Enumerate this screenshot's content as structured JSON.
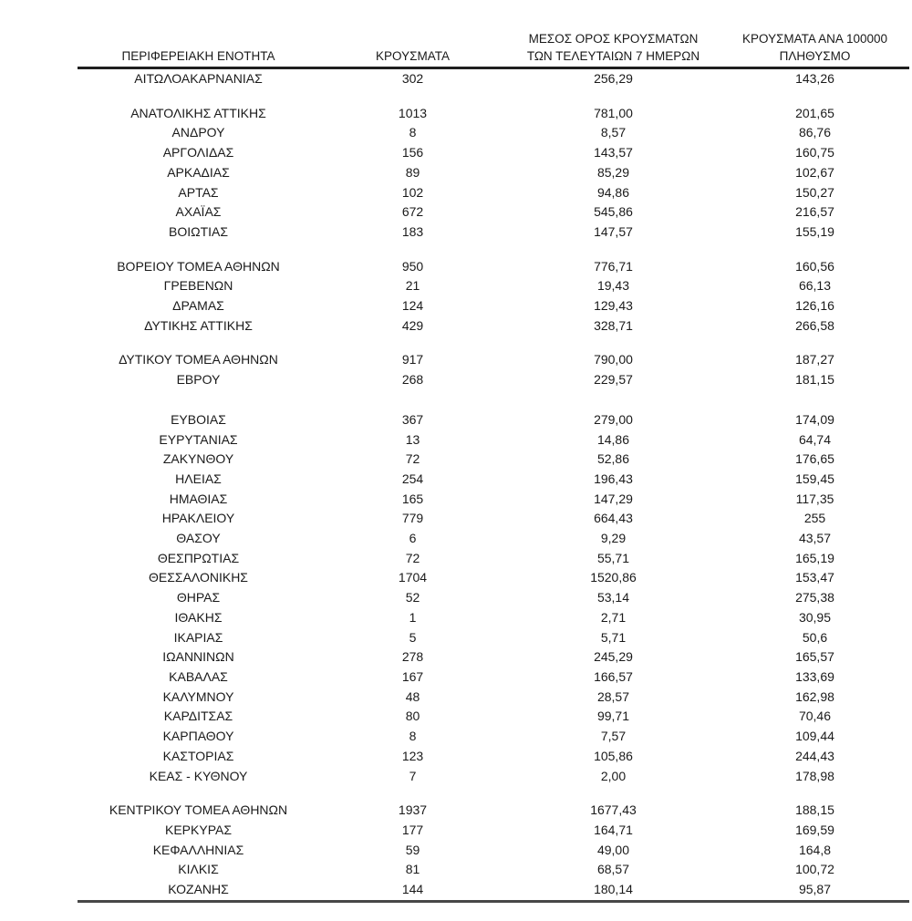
{
  "colors": {
    "background": "#ffffff",
    "text": "#1a1a1a",
    "header_rule": "#1f1f1f",
    "bottom_rule": "#474747"
  },
  "table": {
    "headers": [
      {
        "lines": [
          "ΠΕΡΙΦΕΡΕΙΑΚΗ ΕΝΟΤΗΤΑ"
        ]
      },
      {
        "lines": [
          "ΚΡΟΥΣΜΑΤΑ"
        ]
      },
      {
        "lines": [
          "ΜΕΣΟΣ ΟΡΟΣ ΚΡΟΥΣΜΑΤΩΝ",
          "ΤΩΝ ΤΕΛΕΥΤΑΙΩΝ 7 ΗΜΕΡΩΝ"
        ]
      },
      {
        "lines": [
          "ΚΡΟΥΣΜΑΤΑ ΑΝΑ 100000",
          "ΠΛΗΘΥΣΜΟ"
        ]
      }
    ],
    "groups": [
      {
        "rows": [
          [
            "ΑΙΤΩΛΟΑΚΑΡΝΑΝΙΑΣ",
            "302",
            "256,29",
            "143,26"
          ]
        ]
      },
      {
        "rows": [
          [
            "ΑΝΑΤΟΛΙΚΗΣ ΑΤΤΙΚΗΣ",
            "1013",
            "781,00",
            "201,65"
          ],
          [
            "ΑΝΔΡΟΥ",
            "8",
            "8,57",
            "86,76"
          ],
          [
            "ΑΡΓΟΛΙΔΑΣ",
            "156",
            "143,57",
            "160,75"
          ],
          [
            "ΑΡΚΑΔΙΑΣ",
            "89",
            "85,29",
            "102,67"
          ],
          [
            "ΑΡΤΑΣ",
            "102",
            "94,86",
            "150,27"
          ],
          [
            "ΑΧΑΪΑΣ",
            "672",
            "545,86",
            "216,57"
          ],
          [
            "ΒΟΙΩΤΙΑΣ",
            "183",
            "147,57",
            "155,19"
          ]
        ]
      },
      {
        "rows": [
          [
            "ΒΟΡΕΙΟΥ ΤΟΜΕΑ ΑΘΗΝΩΝ",
            "950",
            "776,71",
            "160,56"
          ],
          [
            "ΓΡΕΒΕΝΩΝ",
            "21",
            "19,43",
            "66,13"
          ],
          [
            "ΔΡΑΜΑΣ",
            "124",
            "129,43",
            "126,16"
          ],
          [
            "ΔΥΤΙΚΗΣ ΑΤΤΙΚΗΣ",
            "429",
            "328,71",
            "266,58"
          ]
        ]
      },
      {
        "rows": [
          [
            "ΔΥΤΙΚΟΥ ΤΟΜΕΑ ΑΘΗΝΩΝ",
            "917",
            "790,00",
            "187,27"
          ],
          [
            "ΕΒΡΟΥ",
            "268",
            "229,57",
            "181,15"
          ]
        ],
        "large_gap_after": true
      },
      {
        "rows": [
          [
            "ΕΥΒΟΙΑΣ",
            "367",
            "279,00",
            "174,09"
          ],
          [
            "ΕΥΡΥΤΑΝΙΑΣ",
            "13",
            "14,86",
            "64,74"
          ],
          [
            "ΖΑΚΥΝΘΟΥ",
            "72",
            "52,86",
            "176,65"
          ],
          [
            "ΗΛΕΙΑΣ",
            "254",
            "196,43",
            "159,45"
          ],
          [
            "ΗΜΑΘΙΑΣ",
            "165",
            "147,29",
            "117,35"
          ],
          [
            "ΗΡΑΚΛΕΙΟΥ",
            "779",
            "664,43",
            "255"
          ],
          [
            "ΘΑΣΟΥ",
            "6",
            "9,29",
            "43,57"
          ],
          [
            "ΘΕΣΠΡΩΤΙΑΣ",
            "72",
            "55,71",
            "165,19"
          ],
          [
            "ΘΕΣΣΑΛΟΝΙΚΗΣ",
            "1704",
            "1520,86",
            "153,47"
          ],
          [
            "ΘΗΡΑΣ",
            "52",
            "53,14",
            "275,38"
          ],
          [
            "ΙΘΑΚΗΣ",
            "1",
            "2,71",
            "30,95"
          ],
          [
            "ΙΚΑΡΙΑΣ",
            "5",
            "5,71",
            "50,6"
          ],
          [
            "ΙΩΑΝΝΙΝΩΝ",
            "278",
            "245,29",
            "165,57"
          ],
          [
            "ΚΑΒΑΛΑΣ",
            "167",
            "166,57",
            "133,69"
          ],
          [
            "ΚΑΛΥΜΝΟΥ",
            "48",
            "28,57",
            "162,98"
          ],
          [
            "ΚΑΡΔΙΤΣΑΣ",
            "80",
            "99,71",
            "70,46"
          ],
          [
            "ΚΑΡΠΑΘΟΥ",
            "8",
            "7,57",
            "109,44"
          ],
          [
            "ΚΑΣΤΟΡΙΑΣ",
            "123",
            "105,86",
            "244,43"
          ],
          [
            "ΚΕΑΣ - ΚΥΘΝΟΥ",
            "7",
            "2,00",
            "178,98"
          ]
        ]
      },
      {
        "rows": [
          [
            "ΚΕΝΤΡΙΚΟΥ ΤΟΜΕΑ ΑΘΗΝΩΝ",
            "1937",
            "1677,43",
            "188,15"
          ],
          [
            "ΚΕΡΚΥΡΑΣ",
            "177",
            "164,71",
            "169,59"
          ],
          [
            "ΚΕΦΑΛΛΗΝΙΑΣ",
            "59",
            "49,00",
            "164,8"
          ],
          [
            "ΚΙΛΚΙΣ",
            "81",
            "68,57",
            "100,72"
          ],
          [
            "ΚΟΖΑΝΗΣ",
            "144",
            "180,14",
            "95,87"
          ]
        ]
      }
    ]
  }
}
